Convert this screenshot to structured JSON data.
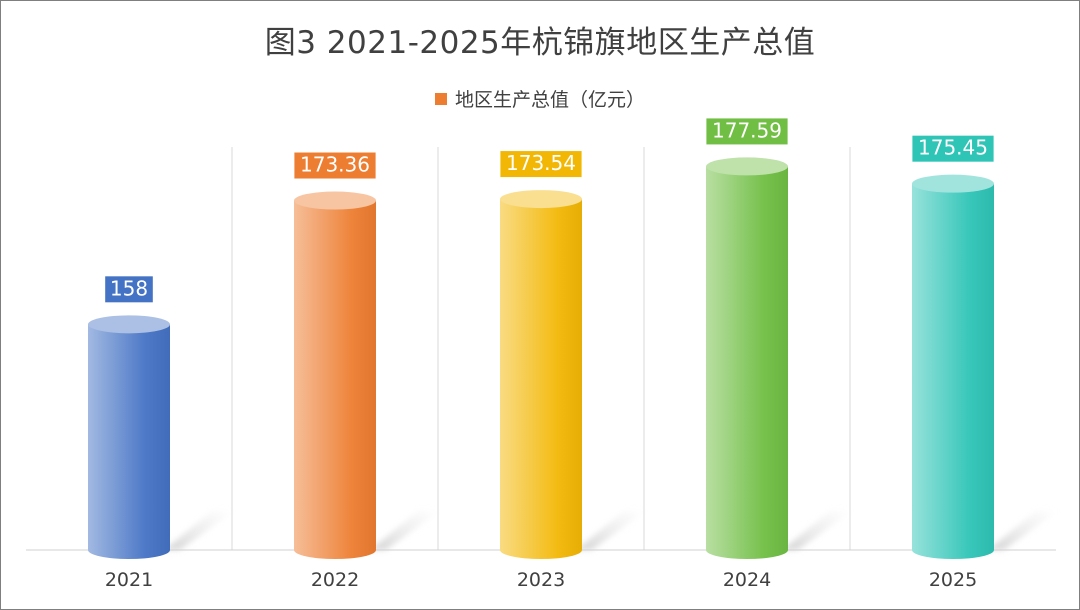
{
  "chart_data": {
    "type": "bar",
    "title": "图3  2021-2025年杭锦旗地区生产总值",
    "categories": [
      "2021",
      "2022",
      "2023",
      "2024",
      "2025"
    ],
    "series": [
      {
        "name": "地区生产总值（亿元）",
        "values": [
          158,
          173.36,
          173.54,
          177.59,
          175.45
        ],
        "value_labels": [
          "158",
          "173.36",
          "173.54",
          "177.59",
          "175.45"
        ]
      }
    ],
    "bar_colors": [
      "#4472C4",
      "#ED7D31",
      "#F2B705",
      "#70BE44",
      "#2EC4B6"
    ],
    "legend_color": "#ED7D31",
    "legend_position": "top",
    "bar_style": "3d-cylinder",
    "ylim": [
      130,
      180
    ],
    "grid": "vertical-separators",
    "xlabel": "",
    "ylabel": ""
  }
}
